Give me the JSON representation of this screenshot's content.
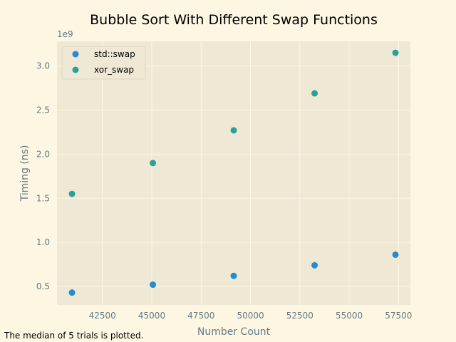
{
  "chart_data": {
    "type": "scatter",
    "title": "Bubble Sort With Different Swap Functions",
    "xlabel": "Number Count",
    "ylabel": "Timing (ns)",
    "y_offset_label": "1e9",
    "footnote": "The median of 5 trials is plotted.",
    "xlim": [
      40200,
      58100
    ],
    "ylim": [
      0.29,
      3.28
    ],
    "x_ticks": [
      42500,
      45000,
      47500,
      50000,
      52500,
      55000,
      57500
    ],
    "x_tick_labels": [
      "42500",
      "45000",
      "47500",
      "50000",
      "52500",
      "55000",
      "57500"
    ],
    "y_ticks": [
      0.5,
      1.0,
      1.5,
      2.0,
      2.5,
      3.0
    ],
    "y_tick_labels": [
      "0.5",
      "1.0",
      "1.5",
      "2.0",
      "2.5",
      "3.0"
    ],
    "grid": true,
    "legend_position": "upper-left",
    "series": [
      {
        "name": "std::swap",
        "color": "#268bd2",
        "x": [
          40960,
          45056,
          49152,
          53248,
          57344
        ],
        "y": [
          0.43,
          0.52,
          0.62,
          0.74,
          0.86
        ]
      },
      {
        "name": "xor_swap",
        "color": "#2aa198",
        "x": [
          40960,
          45056,
          49152,
          53248,
          57344
        ],
        "y": [
          1.55,
          1.9,
          2.27,
          2.69,
          3.15
        ]
      }
    ]
  }
}
